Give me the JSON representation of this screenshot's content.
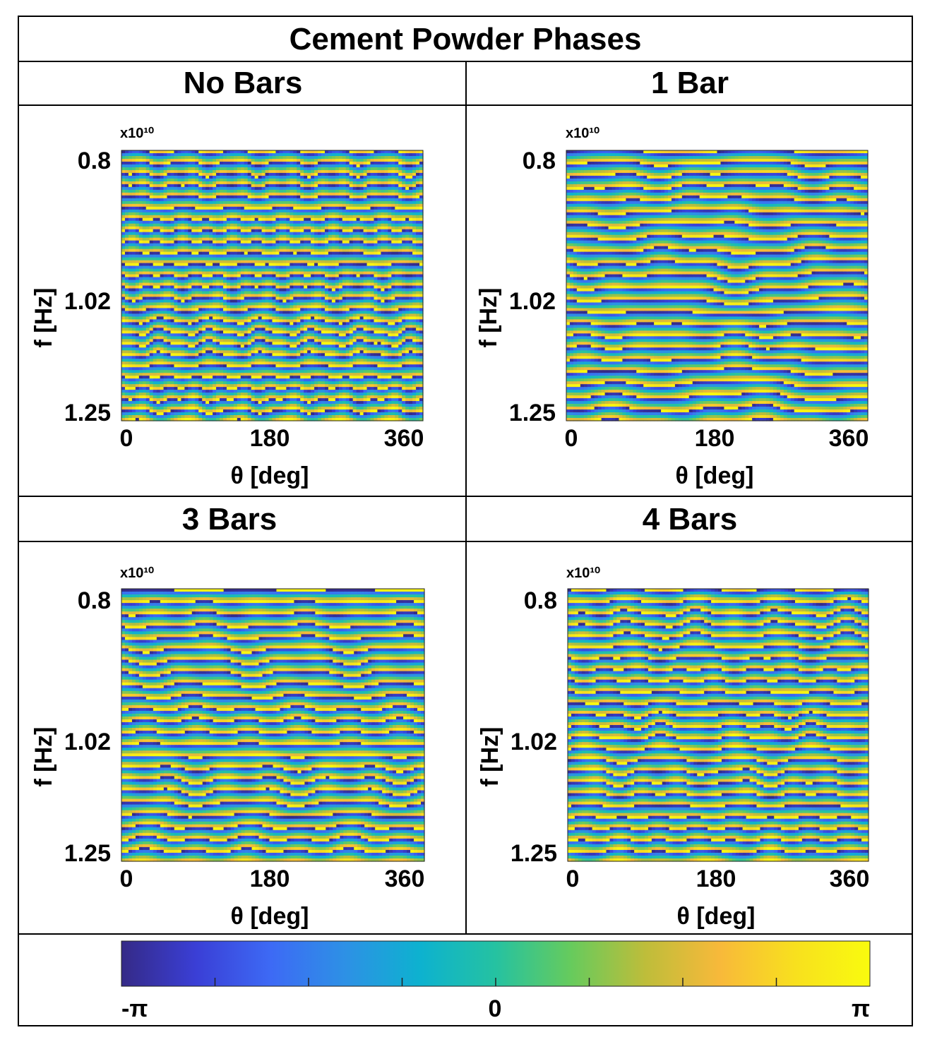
{
  "figure": {
    "title": "Cement Powder Phases"
  },
  "chart_data": [
    {
      "type": "heatmap",
      "panel_title": "No Bars",
      "xlabel": "θ [deg]",
      "ylabel": "f [Hz]",
      "xticks": [
        "0",
        "180",
        "360"
      ],
      "yticks": [
        "0.8",
        "1.02",
        "1.25"
      ],
      "y_exponent_label": "x10¹⁰",
      "xlim": [
        0,
        360
      ],
      "ylim": [
        0.8,
        1.25
      ],
      "z_quantity": "phase",
      "zlim": [
        -3.14159,
        3.14159
      ],
      "pattern_seed": 1,
      "pattern_fringe_count": 24,
      "pattern_symmetry": 6
    },
    {
      "type": "heatmap",
      "panel_title": "1 Bar",
      "xlabel": "θ [deg]",
      "ylabel": "f [Hz]",
      "xticks": [
        "0",
        "180",
        "360"
      ],
      "yticks": [
        "0.8",
        "1.02",
        "1.25"
      ],
      "y_exponent_label": "x10¹⁰",
      "xlim": [
        0,
        360
      ],
      "ylim": [
        0.8,
        1.25
      ],
      "z_quantity": "phase",
      "zlim": [
        -3.14159,
        3.14159
      ],
      "pattern_seed": 2,
      "pattern_fringe_count": 22,
      "pattern_symmetry": 2
    },
    {
      "type": "heatmap",
      "panel_title": "3 Bars",
      "xlabel": "θ [deg]",
      "ylabel": "f [Hz]",
      "xticks": [
        "0",
        "180",
        "360"
      ],
      "yticks": [
        "0.8",
        "1.02",
        "1.25"
      ],
      "y_exponent_label": "x10¹⁰",
      "xlim": [
        0,
        360
      ],
      "ylim": [
        0.8,
        1.25
      ],
      "z_quantity": "phase",
      "zlim": [
        -3.14159,
        3.14159
      ],
      "pattern_seed": 3,
      "pattern_fringe_count": 23,
      "pattern_symmetry": 3
    },
    {
      "type": "heatmap",
      "panel_title": "4 Bars",
      "xlabel": "θ [deg]",
      "ylabel": "f [Hz]",
      "xticks": [
        "0",
        "180",
        "360"
      ],
      "yticks": [
        "0.8",
        "1.02",
        "1.25"
      ],
      "y_exponent_label": "x10¹⁰",
      "xlim": [
        0,
        360
      ],
      "ylim": [
        0.8,
        1.25
      ],
      "z_quantity": "phase",
      "zlim": [
        -3.14159,
        3.14159
      ],
      "pattern_seed": 4,
      "pattern_fringe_count": 24,
      "pattern_symmetry": 4
    }
  ],
  "colorbar": {
    "colormap": "parula",
    "labels": [
      "-π",
      "0",
      "π"
    ],
    "range": [
      -3.14159,
      3.14159
    ],
    "tick_count": 9,
    "colors": [
      "#352a87",
      "#3a3fd6",
      "#3d6af5",
      "#2d91e5",
      "#0db2cf",
      "#25c2a1",
      "#66cb5d",
      "#bebd3a",
      "#f8b93a",
      "#f8e01e",
      "#f9fb0e"
    ]
  }
}
